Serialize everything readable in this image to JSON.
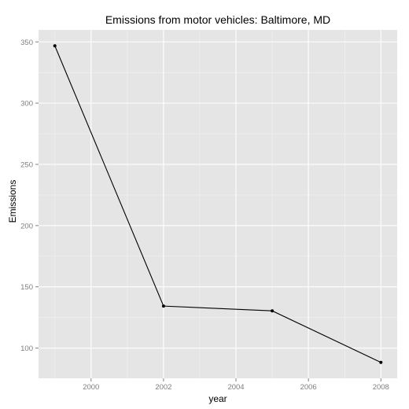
{
  "chart_data": {
    "type": "line",
    "title": "Emissions from motor vehicles: Baltimore, MD",
    "xlabel": "year",
    "ylabel": "Emissions",
    "x": [
      1999,
      2002,
      2005,
      2008
    ],
    "series": [
      {
        "values": [
          346.8,
          134.3,
          130.4,
          88.3
        ]
      }
    ],
    "xticks": [
      2000,
      2002,
      2004,
      2006,
      2008
    ],
    "yticks": [
      100,
      150,
      200,
      250,
      300,
      350
    ],
    "xticklabels": [
      "2000",
      "2002",
      "2004",
      "2006",
      "2008"
    ],
    "yticklabels": [
      "100",
      "150",
      "200",
      "250",
      "300",
      "350"
    ],
    "xlim": [
      1998.55,
      2008.45
    ],
    "ylim": [
      75.3,
      359.8
    ],
    "grid": true,
    "legend": "none",
    "colors": {
      "panel": "#e5e5e5",
      "grid_major": "#ffffff",
      "grid_minor": "#f2f2f2",
      "line": "#000000",
      "point": "#000000",
      "tick_text": "#7f7f7f"
    }
  }
}
